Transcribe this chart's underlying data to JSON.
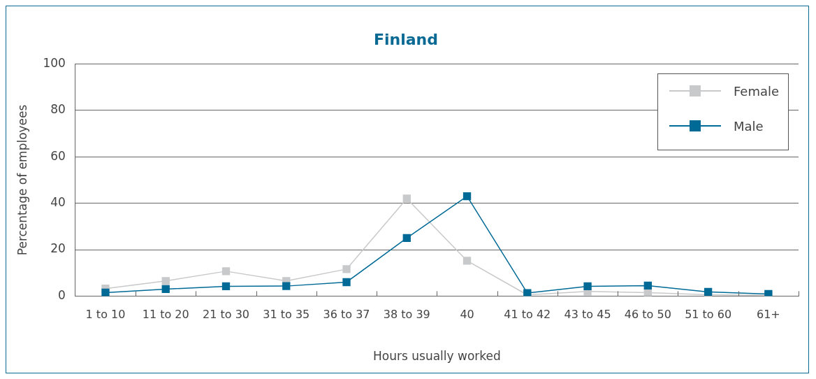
{
  "chart_data": {
    "type": "line",
    "title": "Finland",
    "xlabel": "Hours usually worked",
    "ylabel": "Percentage of employees",
    "categories": [
      "1 to 10",
      "11 to 20",
      "21 to 30",
      "31 to 35",
      "36 to 37",
      "38 to 39",
      "40",
      "41 to 42",
      "43 to 45",
      "46 to 50",
      "51 to 60",
      "61+"
    ],
    "series": [
      {
        "name": "Female",
        "color": "#c8c9cb",
        "values": [
          3.2,
          6.5,
          10.7,
          6.5,
          11.6,
          42,
          15.2,
          0.5,
          2,
          1.5,
          0.6,
          0.3
        ]
      },
      {
        "name": "Male",
        "color": "#006a96",
        "values": [
          1.5,
          3,
          4.2,
          4.3,
          6,
          25,
          43,
          1.3,
          4.2,
          4.5,
          1.8,
          0.9
        ]
      }
    ],
    "ylim": [
      0,
      100
    ],
    "yticks": [
      0,
      20,
      40,
      60,
      80,
      100
    ],
    "grid": "y",
    "legend": "top right",
    "marker": "square",
    "line_style": "solid"
  }
}
